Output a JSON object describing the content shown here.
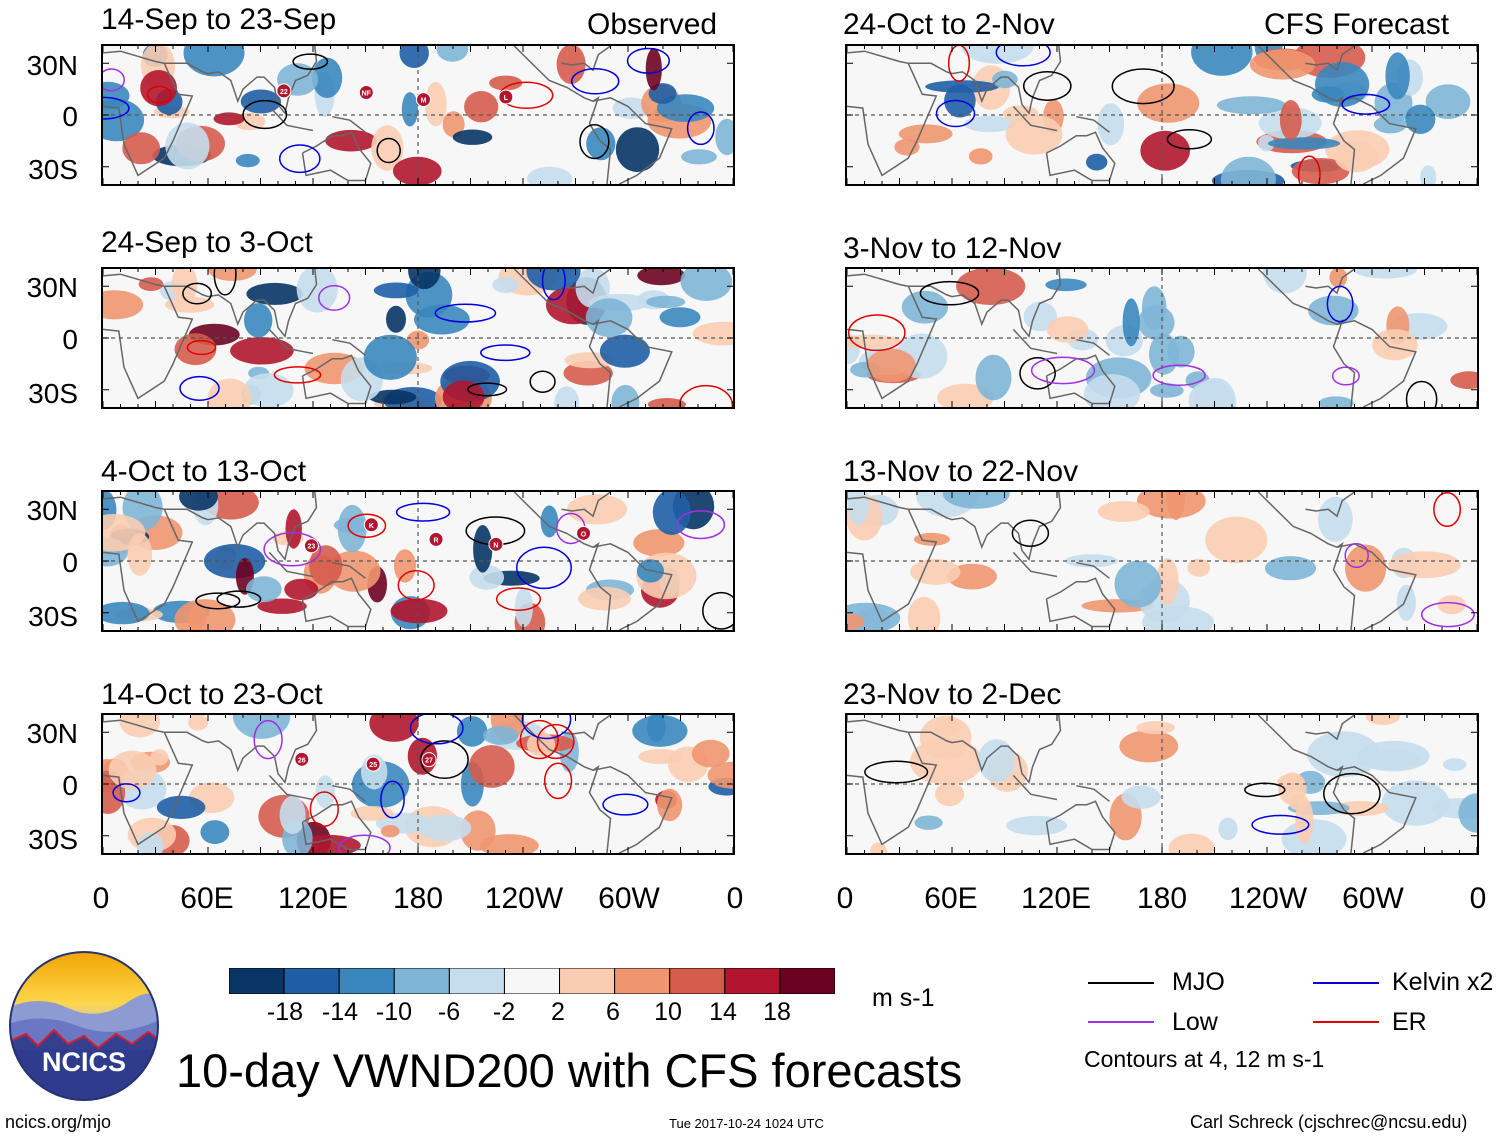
{
  "chart_data": {
    "type": "heatmap",
    "title": "10-day VWND200 with CFS forecasts",
    "variable": "VWND200",
    "units": "m s-1",
    "column_labels": {
      "observed": "Observed",
      "forecast": "CFS Forecast"
    },
    "lat_ticks": [
      "30N",
      "0",
      "30S"
    ],
    "lat_values": [
      30,
      0,
      -30
    ],
    "lon_ticks": [
      "0",
      "60E",
      "120E",
      "180",
      "120W",
      "60W",
      "0"
    ],
    "lon_values": [
      0,
      60,
      120,
      180,
      240,
      300,
      360
    ],
    "lat_range": [
      -40,
      40
    ],
    "lon_range": [
      0,
      360
    ],
    "observed_panels": [
      {
        "title": "14-Sep to 23-Sep",
        "storms": [
          "22",
          "NF",
          "M",
          "L"
        ]
      },
      {
        "title": "24-Sep to 3-Oct",
        "storms": []
      },
      {
        "title": "4-Oct to 13-Oct",
        "storms": [
          "23",
          "K",
          "R",
          "N",
          "O"
        ]
      },
      {
        "title": "14-Oct to 23-Oct",
        "storms": [
          "26",
          "25",
          "27"
        ]
      }
    ],
    "forecast_panels": [
      {
        "title": "24-Oct to 2-Nov"
      },
      {
        "title": "3-Nov to 12-Nov"
      },
      {
        "title": "13-Nov to 22-Nov"
      },
      {
        "title": "23-Nov to 2-Dec"
      }
    ],
    "colorbar": {
      "labels": [
        "-18",
        "-14",
        "-10",
        "-6",
        "-2",
        "2",
        "6",
        "10",
        "14",
        "18"
      ],
      "colors": [
        "#083466",
        "#1f5ea5",
        "#3a87be",
        "#7eb5d6",
        "#c5ddec",
        "#f7f7f7",
        "#f9cdb2",
        "#ef9670",
        "#d55c4c",
        "#b1162e",
        "#6b0221"
      ]
    },
    "legend": [
      {
        "label": "MJO",
        "color": "#000000"
      },
      {
        "label": "Kelvin x2",
        "color": "#0000dd"
      },
      {
        "label": "Low",
        "color": "#a030e0"
      },
      {
        "label": "ER",
        "color": "#e00000"
      }
    ],
    "contours_note": "Contours at 4, 12 m s-1"
  },
  "logo": {
    "text": "NCICS"
  },
  "footer": {
    "left": "ncics.org/mjo",
    "center": "Tue 2017-10-24 1024 UTC",
    "right": "Carl Schreck (cjschrec@ncsu.edu)"
  }
}
